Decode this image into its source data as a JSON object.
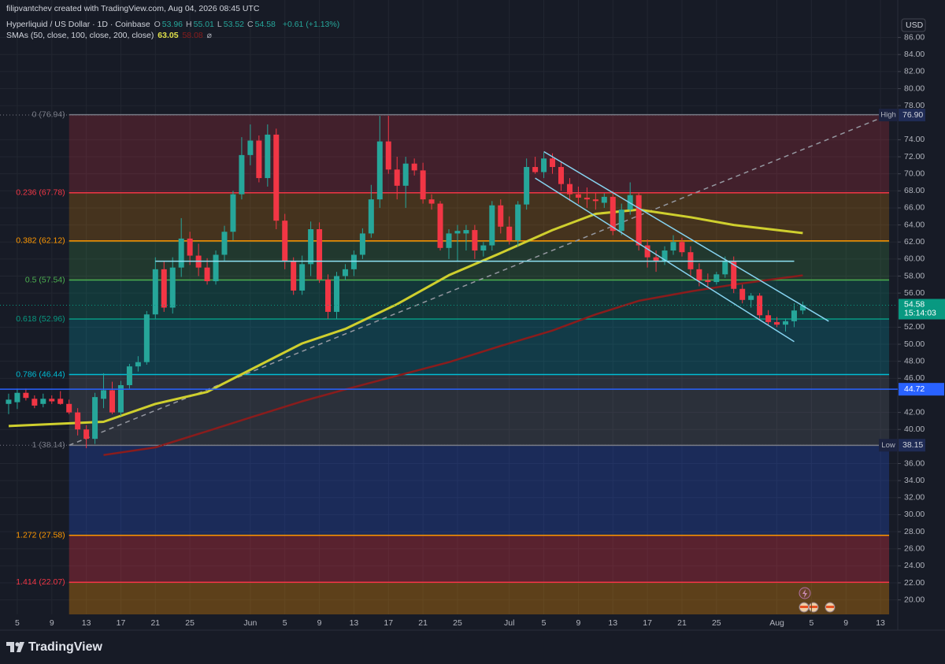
{
  "header": {
    "credit": "filipvantchev created with TradingView.com, Aug 04, 2026 08:45 UTC",
    "symbol": "Hyperliquid / US Dollar · 1D · Coinbase",
    "ohlc": [
      {
        "label": "O",
        "value": 53.96
      },
      {
        "label": "H",
        "value": 55.01
      },
      {
        "label": "L",
        "value": 53.52
      },
      {
        "label": "C",
        "value": 54.58
      }
    ],
    "change": "+0.61 (+1.13%)",
    "sma_label": "SMAs (50, close, 100, close, 200, close)",
    "sma_symbol": "⌀"
  },
  "chart_data": {
    "type": "candlestick",
    "currency": "USD",
    "x": [
      "2026-05-04",
      "2026-05-05",
      "2026-05-06",
      "2026-05-07",
      "2026-05-08",
      "2026-05-09",
      "2026-05-10",
      "2026-05-11",
      "2026-05-12",
      "2026-05-13",
      "2026-05-14",
      "2026-05-15",
      "2026-05-16",
      "2026-05-17",
      "2026-05-18",
      "2026-05-19",
      "2026-05-20",
      "2026-05-21",
      "2026-05-22",
      "2026-05-23",
      "2026-05-24",
      "2026-05-25",
      "2026-05-26",
      "2026-05-27",
      "2026-05-28",
      "2026-05-29",
      "2026-05-30",
      "2026-05-31",
      "2026-06-01",
      "2026-06-02",
      "2026-06-03",
      "2026-06-04",
      "2026-06-05",
      "2026-06-06",
      "2026-06-07",
      "2026-06-08",
      "2026-06-09",
      "2026-06-10",
      "2026-06-11",
      "2026-06-12",
      "2026-06-13",
      "2026-06-14",
      "2026-06-15",
      "2026-06-16",
      "2026-06-17",
      "2026-06-18",
      "2026-06-19",
      "2026-06-20",
      "2026-06-21",
      "2026-06-22",
      "2026-06-23",
      "2026-06-24",
      "2026-06-25",
      "2026-06-26",
      "2026-06-27",
      "2026-06-28",
      "2026-06-29",
      "2026-06-30",
      "2026-07-01",
      "2026-07-02",
      "2026-07-03",
      "2026-07-04",
      "2026-07-05",
      "2026-07-06",
      "2026-07-07",
      "2026-07-08",
      "2026-07-09",
      "2026-07-10",
      "2026-07-11",
      "2026-07-12",
      "2026-07-13",
      "2026-07-14",
      "2026-07-15",
      "2026-07-16",
      "2026-07-17",
      "2026-07-18",
      "2026-07-19",
      "2026-07-20",
      "2026-07-21",
      "2026-07-22",
      "2026-07-23",
      "2026-07-24",
      "2026-07-25",
      "2026-07-26",
      "2026-07-27",
      "2026-07-28",
      "2026-07-29",
      "2026-07-30",
      "2026-07-31",
      "2026-08-01",
      "2026-08-02",
      "2026-08-03",
      "2026-08-04"
    ],
    "open": [
      43.0,
      43.2,
      44.3,
      43.6,
      43.0,
      43.6,
      43.6,
      43.0,
      42.0,
      40.0,
      38.9,
      43.6,
      44.6,
      42.0,
      45.2,
      47.4,
      47.9,
      53.5,
      58.8,
      54.3,
      59.0,
      62.4,
      60.4,
      59.0,
      57.4,
      60.5,
      63.2,
      67.6,
      72.2,
      73.9,
      69.5,
      74.6,
      64.5,
      59.8,
      56.3,
      59.4,
      63.5,
      57.6,
      53.8,
      58.0,
      58.8,
      60.5,
      63.0,
      67.0,
      73.8,
      70.5,
      68.6,
      71.2,
      70.4,
      67.0,
      66.5,
      61.3,
      63.0,
      63.0,
      63.4,
      61.0,
      61.6,
      66.3,
      63.8,
      62.2,
      66.4,
      70.8,
      70.2,
      71.8,
      70.8,
      68.8,
      67.6,
      67.2,
      67.0,
      66.6,
      67.3,
      63.3,
      65.8,
      67.5,
      61.6,
      60.2,
      59.8,
      61.0,
      62.0,
      60.8,
      58.8,
      57.5,
      57.3,
      58.2,
      59.7,
      56.5,
      55.2,
      55.7,
      53.4,
      52.6,
      52.3,
      52.7,
      53.96
    ],
    "high": [
      44.2,
      44.8,
      44.8,
      44.0,
      44.2,
      44.0,
      44.5,
      43.5,
      42.5,
      40.5,
      44.3,
      46.6,
      45.6,
      45.7,
      47.7,
      48.6,
      53.9,
      60.2,
      59.8,
      60.2,
      64.8,
      63.2,
      61.8,
      60.1,
      61.0,
      63.9,
      68.0,
      74.3,
      75.8,
      74.5,
      75.8,
      75.3,
      65.3,
      60.2,
      60.4,
      64.4,
      64.3,
      58.2,
      58.5,
      59.4,
      61.0,
      63.6,
      68.7,
      76.8,
      76.8,
      72.0,
      72.0,
      71.8,
      71.3,
      67.6,
      66.8,
      63.5,
      64.0,
      64.0,
      64.0,
      62.0,
      66.8,
      67.0,
      65.0,
      66.8,
      71.8,
      72.0,
      72.5,
      72.4,
      71.5,
      69.5,
      68.5,
      68.4,
      67.8,
      67.7,
      68.0,
      66.5,
      69.0,
      67.8,
      62.3,
      61.0,
      61.5,
      62.8,
      62.5,
      61.5,
      59.5,
      58.3,
      58.5,
      60.3,
      60.3,
      57.0,
      56.0,
      56.0,
      54.0,
      53.2,
      53.0,
      54.8,
      55.01
    ],
    "low": [
      41.8,
      42.4,
      43.4,
      42.5,
      42.6,
      43.0,
      42.9,
      41.8,
      39.3,
      37.8,
      38.3,
      42.5,
      41.8,
      41.6,
      44.8,
      46.8,
      47.6,
      53.0,
      53.8,
      53.6,
      57.9,
      59.3,
      58.0,
      57.0,
      57.0,
      59.8,
      62.2,
      67.0,
      71.0,
      69.0,
      68.5,
      63.5,
      58.8,
      55.8,
      55.8,
      58.0,
      57.2,
      53.0,
      53.0,
      57.5,
      58.0,
      60.0,
      62.5,
      66.0,
      70.0,
      67.0,
      66.0,
      69.8,
      66.5,
      65.8,
      61.0,
      60.0,
      59.8,
      61.0,
      60.0,
      60.3,
      61.0,
      63.0,
      61.7,
      61.5,
      65.8,
      70.0,
      69.5,
      70.0,
      68.0,
      66.8,
      66.5,
      66.0,
      65.8,
      66.0,
      62.8,
      62.8,
      65.2,
      61.0,
      59.0,
      58.5,
      59.3,
      60.5,
      60.3,
      58.0,
      56.8,
      56.8,
      57.0,
      57.8,
      56.0,
      54.8,
      54.3,
      53.0,
      52.2,
      52.0,
      51.5,
      52.0,
      53.52
    ],
    "close": [
      43.5,
      44.3,
      43.7,
      42.8,
      43.6,
      43.3,
      43.0,
      42.0,
      40.0,
      38.9,
      43.8,
      44.6,
      42.0,
      45.2,
      47.4,
      47.9,
      53.5,
      58.8,
      54.3,
      59.0,
      62.4,
      60.4,
      59.0,
      57.4,
      60.5,
      63.2,
      67.6,
      72.2,
      73.9,
      69.5,
      74.6,
      64.5,
      59.8,
      56.3,
      59.4,
      63.5,
      57.6,
      53.8,
      58.0,
      58.8,
      60.5,
      63.0,
      67.0,
      73.8,
      70.5,
      68.6,
      71.2,
      70.4,
      67.0,
      66.5,
      61.3,
      63.0,
      63.3,
      63.4,
      61.0,
      61.6,
      66.3,
      63.8,
      62.2,
      66.4,
      70.8,
      70.2,
      71.8,
      70.8,
      68.8,
      67.6,
      67.2,
      67.0,
      66.8,
      67.3,
      63.3,
      65.8,
      67.5,
      61.6,
      60.2,
      59.8,
      61.0,
      62.0,
      60.8,
      58.8,
      57.5,
      57.3,
      58.2,
      59.7,
      56.5,
      55.2,
      55.7,
      53.4,
      52.6,
      52.3,
      52.7,
      53.96,
      54.58
    ],
    "up_color": "#26a69a",
    "down_color": "#f23645",
    "series": [
      {
        "color": "#cfcf2e",
        "width": 3,
        "x": [
          "2026-05-04",
          "2026-05-15",
          "2026-05-21",
          "2026-05-27",
          "2026-06-01",
          "2026-06-07",
          "2026-06-12",
          "2026-06-18",
          "2026-06-24",
          "2026-06-30",
          "2026-07-06",
          "2026-07-11",
          "2026-07-16",
          "2026-07-22",
          "2026-07-27",
          "2026-08-04"
        ],
        "values": [
          40.4,
          40.9,
          43.0,
          44.4,
          47.0,
          50.1,
          51.8,
          54.7,
          58.1,
          60.7,
          63.4,
          65.3,
          65.8,
          64.9,
          64.0,
          63.05
        ]
      },
      {
        "color": "#8a1c1c",
        "width": 2.5,
        "x": [
          "2026-05-15",
          "2026-05-21",
          "2026-05-27",
          "2026-06-01",
          "2026-06-07",
          "2026-06-12",
          "2026-06-18",
          "2026-06-24",
          "2026-06-30",
          "2026-07-06",
          "2026-07-11",
          "2026-07-16",
          "2026-07-22",
          "2026-07-27",
          "2026-08-04"
        ],
        "values": [
          37.0,
          37.9,
          39.8,
          41.4,
          43.3,
          44.7,
          46.3,
          47.9,
          49.8,
          51.6,
          53.5,
          55.1,
          56.2,
          57.0,
          58.08
        ]
      }
    ],
    "fib": {
      "start": "2026-05-11",
      "end": "2026-08-14",
      "levels": [
        {
          "label": "0 (76.94)",
          "value": 76.94,
          "color": "#787b86",
          "fill": "rgba(242,54,69,0.20)"
        },
        {
          "label": "0.236 (67.78)",
          "value": 67.78,
          "color": "#f23645",
          "fill": "rgba(255,152,0,0.20)"
        },
        {
          "label": "0.382 (62.12)",
          "value": 62.12,
          "color": "#ff9800",
          "fill": "rgba(76,175,80,0.20)"
        },
        {
          "label": "0.5 (57.54)",
          "value": 57.54,
          "color": "#4caf50",
          "fill": "rgba(8,153,129,0.22)"
        },
        {
          "label": "0.618 (52.96)",
          "value": 52.96,
          "color": "#089981",
          "fill": "rgba(0,188,212,0.20)"
        },
        {
          "label": "0.786 (46.44)",
          "value": 46.44,
          "color": "#00bcd4",
          "fill": "rgba(120,123,134,0.22)"
        },
        {
          "label": "1 (38.14)",
          "value": 38.14,
          "color": "#787b86",
          "fill": "rgba(41,98,255,0.24)"
        },
        {
          "label": "1.272 (27.58)",
          "value": 27.58,
          "color": "#ff9800",
          "fill": "rgba(242,54,69,0.30)"
        },
        {
          "label": "1.414 (22.07)",
          "value": 22.07,
          "color": "#f23645",
          "fill": "rgba(255,152,0,0.30)"
        }
      ]
    },
    "drawings": [
      {
        "color": "#86d3f0",
        "x": [
          "2026-07-05",
          "2026-08-07"
        ],
        "values": [
          72.6,
          52.7
        ]
      },
      {
        "color": "#86d3f0",
        "x": [
          "2026-07-04",
          "2026-08-03"
        ],
        "values": [
          69.5,
          50.3
        ]
      },
      {
        "color": "#8fe3f5",
        "x": [
          "2026-05-21",
          "2026-08-03"
        ],
        "values": [
          59.75,
          59.75
        ]
      }
    ],
    "hline": {
      "value": 44.72,
      "color": "#2962ff"
    },
    "extremes": [
      {
        "text": "High",
        "value": 76.9,
        "label": "76.90"
      },
      {
        "text": "Low",
        "value": 38.15,
        "label": "38.15"
      }
    ],
    "last": {
      "value": 54.58,
      "countdown": "15:14:03",
      "color": "#089981"
    },
    "xlim": [
      "2026-05-03",
      "2026-08-15"
    ],
    "xticks": [
      {
        "value": "2026-05-05",
        "label": "5"
      },
      {
        "value": "2026-05-09",
        "label": "9"
      },
      {
        "value": "2026-05-13",
        "label": "13"
      },
      {
        "value": "2026-05-17",
        "label": "17"
      },
      {
        "value": "2026-05-21",
        "label": "21"
      },
      {
        "value": "2026-05-25",
        "label": "25"
      },
      {
        "value": "2026-06-01",
        "label": "Jun"
      },
      {
        "value": "2026-06-05",
        "label": "5"
      },
      {
        "value": "2026-06-09",
        "label": "9"
      },
      {
        "value": "2026-06-13",
        "label": "13"
      },
      {
        "value": "2026-06-17",
        "label": "17"
      },
      {
        "value": "2026-06-21",
        "label": "21"
      },
      {
        "value": "2026-06-25",
        "label": "25"
      },
      {
        "value": "2026-07-01",
        "label": "Jul"
      },
      {
        "value": "2026-07-05",
        "label": "5"
      },
      {
        "value": "2026-07-09",
        "label": "9"
      },
      {
        "value": "2026-07-13",
        "label": "13"
      },
      {
        "value": "2026-07-17",
        "label": "17"
      },
      {
        "value": "2026-07-21",
        "label": "21"
      },
      {
        "value": "2026-07-25",
        "label": "25"
      },
      {
        "value": "2026-08-01",
        "label": "Aug"
      },
      {
        "value": "2026-08-05",
        "label": "5"
      },
      {
        "value": "2026-08-09",
        "label": "9"
      },
      {
        "value": "2026-08-13",
        "label": "13"
      }
    ],
    "ylim": [
      18.3,
      86.7
    ],
    "yticks": [
      {
        "value": 86,
        "label": "86.00"
      },
      {
        "value": 84,
        "label": "84.00"
      },
      {
        "value": 82,
        "label": "82.00"
      },
      {
        "value": 80,
        "label": "80.00"
      },
      {
        "value": 78,
        "label": "78.00"
      },
      {
        "value": 74,
        "label": "74.00"
      },
      {
        "value": 72,
        "label": "72.00"
      },
      {
        "value": 70,
        "label": "70.00"
      },
      {
        "value": 68,
        "label": "68.00"
      },
      {
        "value": 66,
        "label": "66.00"
      },
      {
        "value": 64,
        "label": "64.00"
      },
      {
        "value": 62,
        "label": "62.00"
      },
      {
        "value": 60,
        "label": "60.00"
      },
      {
        "value": 58,
        "label": "58.00"
      },
      {
        "value": 56,
        "label": "56.00"
      },
      {
        "value": 52,
        "label": "52.00"
      },
      {
        "value": 50,
        "label": "50.00"
      },
      {
        "value": 48,
        "label": "48.00"
      },
      {
        "value": 46,
        "label": "46.00"
      },
      {
        "value": 42,
        "label": "42.00"
      },
      {
        "value": 40,
        "label": "40.00"
      },
      {
        "value": 36,
        "label": "36.00"
      },
      {
        "value": 34,
        "label": "34.00"
      },
      {
        "value": 32,
        "label": "32.00"
      },
      {
        "value": 30,
        "label": "30.00"
      },
      {
        "value": 28,
        "label": "28.00"
      },
      {
        "value": 26,
        "label": "26.00"
      },
      {
        "value": 24,
        "label": "24.00"
      },
      {
        "value": 22,
        "label": "22.00"
      },
      {
        "value": 20,
        "label": "20.00"
      }
    ],
    "grid": true,
    "brand": "TradingView"
  }
}
